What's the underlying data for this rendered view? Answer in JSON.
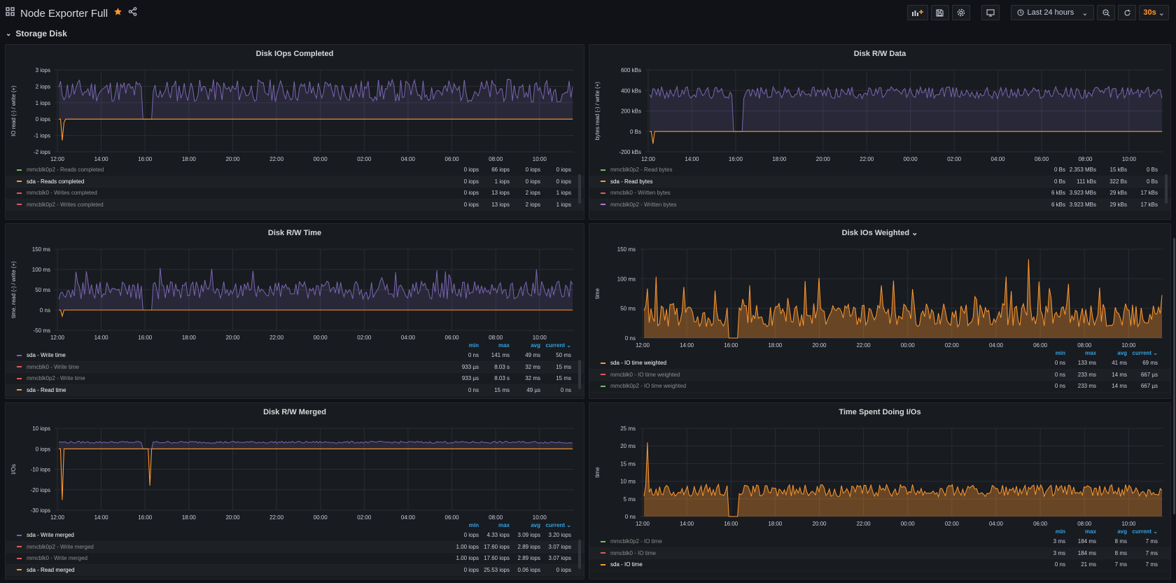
{
  "header": {
    "title": "Node Exporter Full",
    "time_range": "Last 24 hours",
    "refresh": "30s"
  },
  "row": {
    "title": "Storage Disk"
  },
  "colors": {
    "purple": "#7a65b3",
    "orange": "#ff9830",
    "green": "#73bf69",
    "red": "#e05b5b",
    "accent": "#33a2e5"
  },
  "panels": [
    {
      "id": "p1",
      "title": "Disk IOps Completed",
      "ylabel": "IO read (-) / write (+)",
      "chart_data": {
        "type": "line",
        "title": "Disk IOps Completed",
        "ylabel": "IO read (-) / write (+)",
        "ylim": [
          -2,
          3
        ],
        "yticks": [
          "3 iops",
          "2 iops",
          "1 iops",
          "0 iops",
          "-1 iops",
          "-2 iops"
        ],
        "xticks": [
          "12:00",
          "14:00",
          "16:00",
          "18:00",
          "20:00",
          "22:00",
          "00:00",
          "02:00",
          "04:00",
          "06:00",
          "08:00",
          "10:00"
        ],
        "series": [
          {
            "name": "mmcblk0p2 - Reads completed",
            "color": "#7a65b3"
          },
          {
            "name": "sda - Reads completed",
            "color": "#ff9830"
          }
        ]
      },
      "legend": {
        "headers": [],
        "rows": [
          {
            "name": "mmcblk0p2 - Reads completed",
            "color": "#73bf69",
            "cls": "dim",
            "values": [
              "0 iops",
              "66 iops",
              "0 iops",
              "0 iops"
            ]
          },
          {
            "name": "sda - Reads completed",
            "color": "#ff9830",
            "cls": "hi",
            "values": [
              "0 iops",
              "1 iops",
              "0 iops",
              "0 iops"
            ]
          },
          {
            "name": "mmcblk0 - Writes completed",
            "color": "#e05b5b",
            "cls": "dim",
            "values": [
              "0 iops",
              "13 iops",
              "2 iops",
              "1 iops"
            ]
          },
          {
            "name": "mmcblk0p2 - Writes completed",
            "color": "#e05b5b",
            "cls": "dim",
            "values": [
              "0 iops",
              "13 iops",
              "2 iops",
              "1 iops"
            ]
          }
        ]
      }
    },
    {
      "id": "p2",
      "title": "Disk R/W Data",
      "ylabel": "bytes read (-) / write (+)",
      "chart_data": {
        "type": "line",
        "title": "Disk R/W Data",
        "ylabel": "bytes read (-) / write (+)",
        "ylim": [
          -200,
          600
        ],
        "yticks": [
          "600 kBs",
          "400 kBs",
          "200 kBs",
          "0 Bs",
          "-200 kBs"
        ],
        "xticks": [
          "12:00",
          "14:00",
          "16:00",
          "18:00",
          "20:00",
          "22:00",
          "00:00",
          "02:00",
          "04:00",
          "06:00",
          "08:00",
          "10:00"
        ],
        "series": [
          {
            "name": "mmcblk0p2 - Read bytes",
            "color": "#7a65b3"
          },
          {
            "name": "sda - Read bytes",
            "color": "#ff9830"
          }
        ]
      },
      "legend": {
        "headers": [],
        "rows": [
          {
            "name": "mmcblk0p2 - Read bytes",
            "color": "#73bf69",
            "cls": "dim",
            "values": [
              "0 Bs",
              "2.353 MBs",
              "15 kBs",
              "0 Bs"
            ]
          },
          {
            "name": "sda - Read bytes",
            "color": "#ff9830",
            "cls": "hi",
            "values": [
              "0 Bs",
              "111 kBs",
              "322 Bs",
              "0 Bs"
            ]
          },
          {
            "name": "mmcblk0 - Written bytes",
            "color": "#e05b5b",
            "cls": "dim",
            "values": [
              "6 kBs",
              "3.923 MBs",
              "29 kBs",
              "17 kBs"
            ]
          },
          {
            "name": "mmcblk0p2 - Written bytes",
            "color": "#b877d9",
            "cls": "dim",
            "values": [
              "6 kBs",
              "3.923 MBs",
              "29 kBs",
              "17 kBs"
            ]
          }
        ]
      }
    },
    {
      "id": "p3",
      "title": "Disk R/W Time",
      "ylabel": "time. read (-) / write (+)",
      "chart_data": {
        "type": "line",
        "title": "Disk R/W Time",
        "ylabel": "time. read (-) / write (+)",
        "ylim": [
          -50,
          150
        ],
        "yticks": [
          "150 ms",
          "100 ms",
          "50 ms",
          "0 ns",
          "-50 ms"
        ],
        "xticks": [
          "12:00",
          "14:00",
          "16:00",
          "18:00",
          "20:00",
          "22:00",
          "00:00",
          "02:00",
          "04:00",
          "06:00",
          "08:00",
          "10:00"
        ],
        "series": [
          {
            "name": "sda - Write time",
            "color": "#7a65b3"
          },
          {
            "name": "sda - Read time",
            "color": "#ff9830"
          }
        ]
      },
      "legend": {
        "headers": [
          "min",
          "max",
          "avg",
          "current"
        ],
        "rows": [
          {
            "name": "sda - Write time",
            "color": "#7a65b3",
            "cls": "hi",
            "values": [
              "0 ns",
              "141 ms",
              "49 ms",
              "50 ms"
            ]
          },
          {
            "name": "mmcblk0 - Write time",
            "color": "#e05b5b",
            "cls": "dim",
            "values": [
              "933 µs",
              "8.03 s",
              "32 ms",
              "15 ms"
            ]
          },
          {
            "name": "mmcblk0p2 - Write time",
            "color": "#e05b5b",
            "cls": "dim",
            "values": [
              "933 µs",
              "8.03 s",
              "32 ms",
              "15 ms"
            ]
          },
          {
            "name": "sda - Read time",
            "color": "#ff9830",
            "cls": "hi",
            "values": [
              "0 ns",
              "15 ms",
              "49 µs",
              "0 ns"
            ]
          }
        ]
      }
    },
    {
      "id": "p4",
      "title": "Disk IOs Weighted",
      "ylabel": "time",
      "chart_data": {
        "type": "area",
        "title": "Disk IOs Weighted",
        "ylabel": "time",
        "ylim": [
          0,
          150
        ],
        "yticks": [
          "150 ms",
          "100 ms",
          "50 ms",
          "0 ns"
        ],
        "xticks": [
          "12:00",
          "14:00",
          "16:00",
          "18:00",
          "20:00",
          "22:00",
          "00:00",
          "02:00",
          "04:00",
          "06:00",
          "08:00",
          "10:00"
        ],
        "series": [
          {
            "name": "sda - IO time weighted",
            "color": "#ff9830"
          }
        ]
      },
      "legend": {
        "headers": [
          "min",
          "max",
          "avg",
          "current"
        ],
        "rows": [
          {
            "name": "sda - IO time weighted",
            "color": "#ff9830",
            "cls": "hi",
            "values": [
              "0 ns",
              "133 ms",
              "41 ms",
              "69 ms"
            ]
          },
          {
            "name": "mmcblk0 - IO time weighted",
            "color": "#e05b5b",
            "cls": "dim",
            "values": [
              "0 ns",
              "233 ms",
              "14 ms",
              "667 µs"
            ]
          },
          {
            "name": "mmcblk0p2 - IO time weighted",
            "color": "#73bf69",
            "cls": "dim",
            "values": [
              "0 ns",
              "233 ms",
              "14 ms",
              "667 µs"
            ]
          }
        ]
      }
    },
    {
      "id": "p5",
      "title": "Disk R/W Merged",
      "ylabel": "I/Os",
      "chart_data": {
        "type": "line",
        "title": "Disk R/W Merged",
        "ylabel": "I/Os",
        "ylim": [
          -30,
          10
        ],
        "yticks": [
          "10 iops",
          "0 iops",
          "-10 iops",
          "-20 iops",
          "-30 iops"
        ],
        "xticks": [
          "12:00",
          "14:00",
          "16:00",
          "18:00",
          "20:00",
          "22:00",
          "00:00",
          "02:00",
          "04:00",
          "06:00",
          "08:00",
          "10:00"
        ],
        "series": [
          {
            "name": "sda - Write merged",
            "color": "#7a65b3"
          },
          {
            "name": "sda - Read merged",
            "color": "#ff9830"
          }
        ]
      },
      "legend": {
        "headers": [
          "min",
          "max",
          "avg",
          "current"
        ],
        "rows": [
          {
            "name": "sda - Write merged",
            "color": "#7a65b3",
            "cls": "hi",
            "values": [
              "0 iops",
              "4.33 iops",
              "3.09 iops",
              "3.20 iops"
            ]
          },
          {
            "name": "mmcblk0p2 - Write merged",
            "color": "#e05b5b",
            "cls": "dim",
            "values": [
              "1.00 iops",
              "17.60 iops",
              "2.89 iops",
              "3.07 iops"
            ]
          },
          {
            "name": "mmcblk0 - Write merged",
            "color": "#e05b5b",
            "cls": "dim",
            "values": [
              "1.00 iops",
              "17.60 iops",
              "2.89 iops",
              "3.07 iops"
            ]
          },
          {
            "name": "sda - Read merged",
            "color": "#ff9830",
            "cls": "hi",
            "values": [
              "0 iops",
              "25.53 iops",
              "0.06 iops",
              "0 iops"
            ]
          }
        ]
      }
    },
    {
      "id": "p6",
      "title": "Time Spent Doing I/Os",
      "ylabel": "time",
      "chart_data": {
        "type": "area",
        "title": "Time Spent Doing I/Os",
        "ylabel": "time",
        "ylim": [
          0,
          25
        ],
        "yticks": [
          "25 ms",
          "20 ms",
          "15 ms",
          "10 ms",
          "5 ms",
          "0 ns"
        ],
        "xticks": [
          "12:00",
          "14:00",
          "16:00",
          "18:00",
          "20:00",
          "22:00",
          "00:00",
          "02:00",
          "04:00",
          "06:00",
          "08:00",
          "10:00"
        ],
        "series": [
          {
            "name": "sda - IO time",
            "color": "#ff9830"
          }
        ]
      },
      "legend": {
        "headers": [
          "min",
          "max",
          "avg",
          "current"
        ],
        "rows": [
          {
            "name": "mmcblk0p2 - IO time",
            "color": "#73bf69",
            "cls": "dim",
            "values": [
              "3 ms",
              "184 ms",
              "8 ms",
              "7 ms"
            ]
          },
          {
            "name": "mmcblk0 - IO time",
            "color": "#e05b5b",
            "cls": "dim",
            "values": [
              "3 ms",
              "184 ms",
              "8 ms",
              "7 ms"
            ]
          },
          {
            "name": "sda - IO time",
            "color": "#ff9830",
            "cls": "hi",
            "values": [
              "0 ns",
              "21 ms",
              "7 ms",
              "7 ms"
            ]
          }
        ]
      }
    }
  ]
}
